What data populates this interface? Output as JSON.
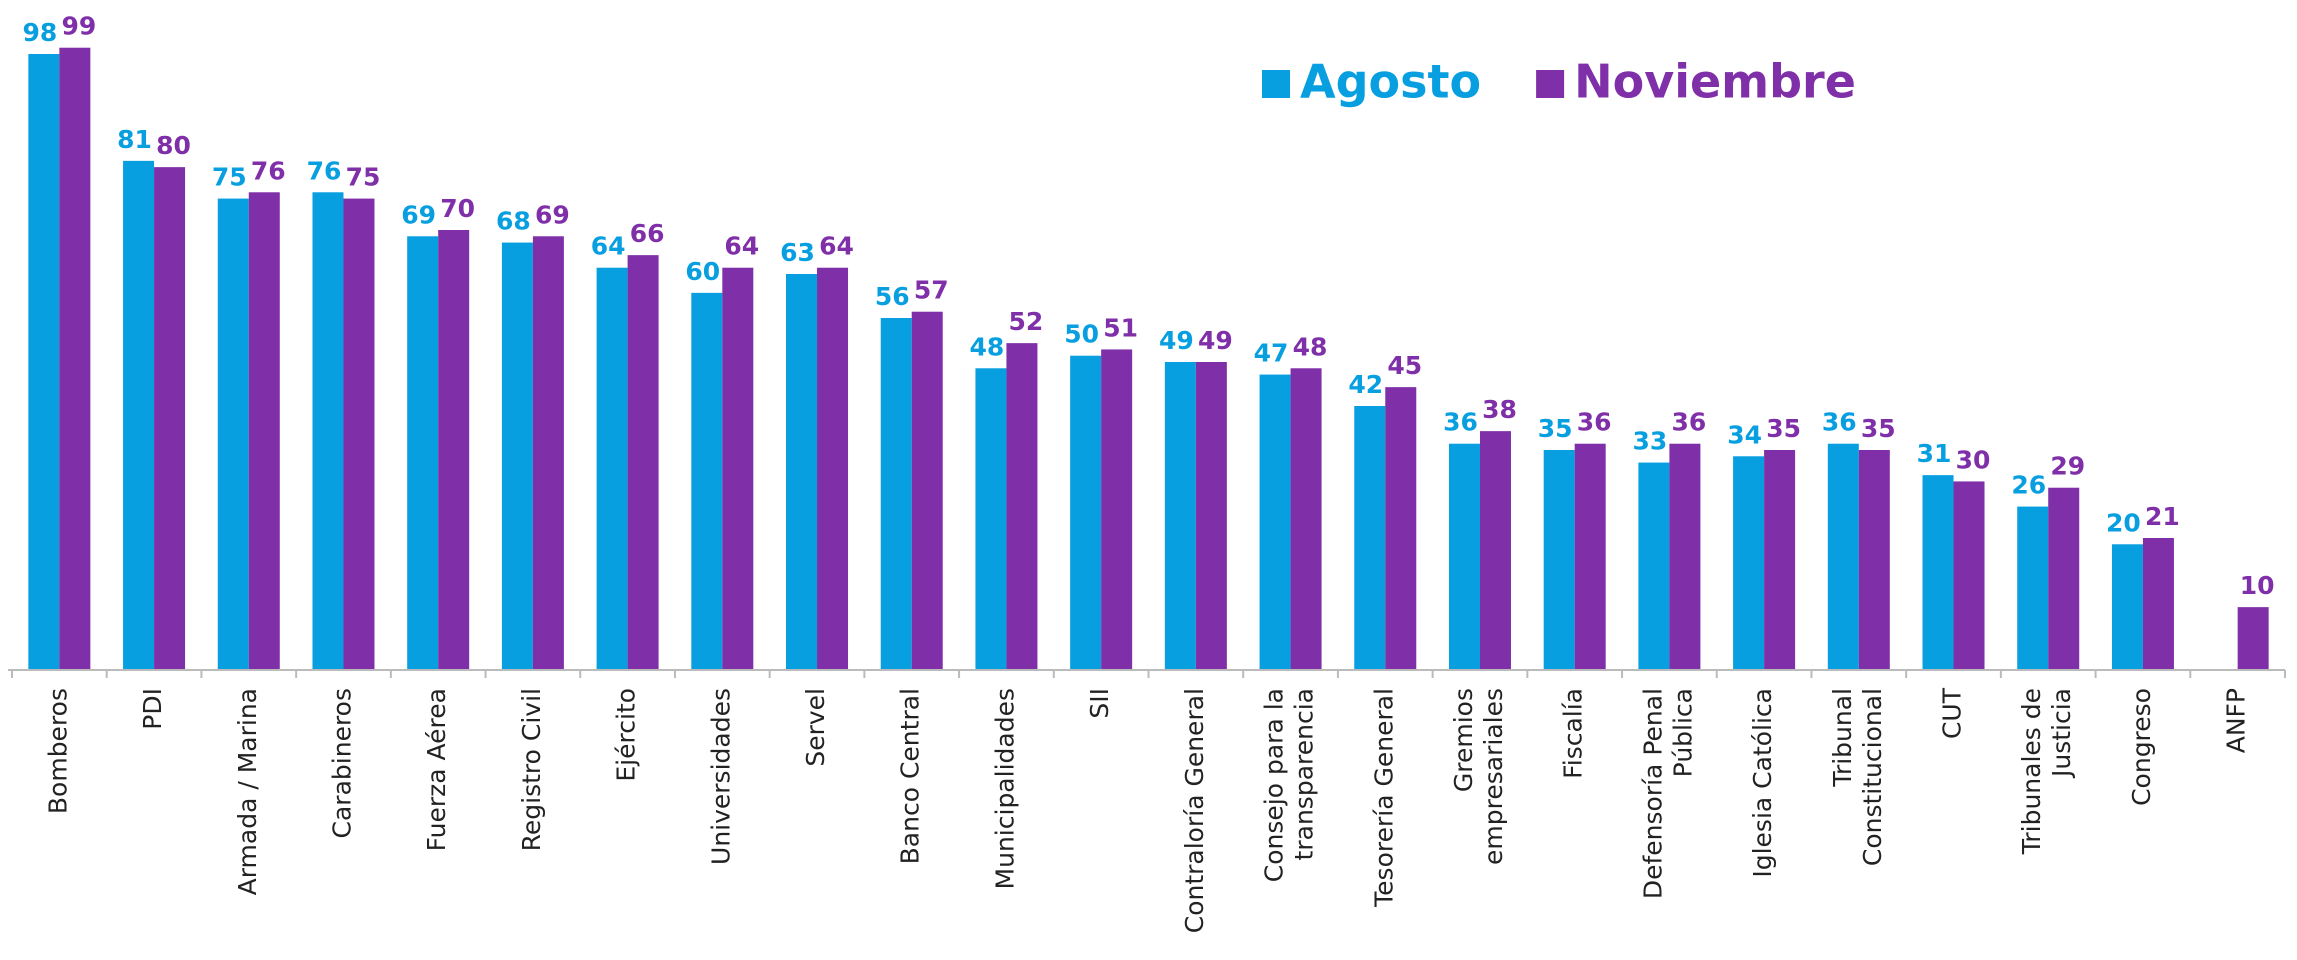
{
  "chart_data": {
    "type": "bar",
    "categories": [
      "Bomberos",
      "PDI",
      "Armada / Marina",
      "Carabineros",
      "Fuerza Aérea",
      "Registro Civil",
      "Ejército",
      "Universidades",
      "Servel",
      "Banco Central",
      "Municipalidades",
      "SII",
      "Contraloría General",
      "Consejo para la\ntransparencia",
      "Tesorería General",
      "Gremios\nempresariales",
      "Fiscalía",
      "Defensoría Penal\nPública",
      "Iglesia Católica",
      "Tribunal\nConstitucional",
      "CUT",
      "Tribunales de\nJusticia",
      "Congreso",
      "ANFP"
    ],
    "series": [
      {
        "name": "Agosto",
        "color": "#089fe0",
        "values": [
          98,
          81,
          75,
          76,
          69,
          68,
          64,
          60,
          63,
          56,
          48,
          50,
          49,
          47,
          42,
          36,
          35,
          33,
          34,
          36,
          31,
          26,
          20,
          null
        ]
      },
      {
        "name": "Noviembre",
        "color": "#7f2fa8",
        "values": [
          99,
          80,
          76,
          75,
          70,
          69,
          66,
          64,
          64,
          57,
          52,
          51,
          49,
          48,
          45,
          38,
          36,
          36,
          35,
          35,
          30,
          29,
          21,
          10
        ]
      }
    ],
    "ylim": [
      0,
      105
    ],
    "legend": "top-right"
  }
}
